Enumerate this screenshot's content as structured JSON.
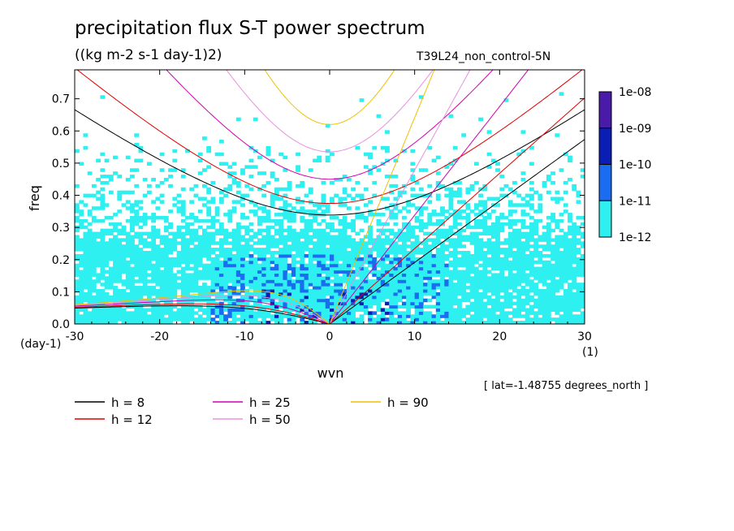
{
  "title": "precipitation flux S-T power spectrum",
  "units": "((kg m-2 s-1 day-1)2)",
  "experiment": "T39L24_non_control-5N",
  "latitude_note": "[ lat=-1.48755 degrees_north ]",
  "chart_data": {
    "type": "heatmap",
    "title": "precipitation flux S-T power spectrum",
    "xlabel": "wvn",
    "ylabel": "freq",
    "x_unit": "(1)",
    "y_unit": "(day-1)",
    "xlim": [
      -30,
      30
    ],
    "ylim": [
      0,
      0.79
    ],
    "xticks": [
      -30,
      -20,
      -10,
      0,
      10,
      20,
      30
    ],
    "xtick_labels": [
      "-30",
      "-20",
      "-10",
      "0",
      "10",
      "20",
      "30"
    ],
    "yticks": [
      0,
      0.1,
      0.2,
      0.3,
      0.4,
      0.5,
      0.6,
      0.7
    ],
    "ytick_labels": [
      "0.0",
      "0.1",
      "0.2",
      "0.3",
      "0.4",
      "0.5",
      "0.6",
      "0.7"
    ],
    "colorbar": {
      "labels": [
        "1e-08",
        "1e-09",
        "1e-10",
        "1e-11",
        "1e-12"
      ],
      "colors": [
        "#4a1aa8",
        "#0a1eb4",
        "#1a6cf0",
        "#2ef0f0"
      ]
    },
    "dispersion_curves": [
      {
        "name": "h = 8",
        "h": 8,
        "color": "#000000"
      },
      {
        "name": "h = 12",
        "h": 12,
        "color": "#e00000"
      },
      {
        "name": "h = 25",
        "h": 25,
        "color": "#d000b0"
      },
      {
        "name": "h = 50",
        "h": 50,
        "color": "#e890e0"
      },
      {
        "name": "h = 90",
        "h": 90,
        "color": "#f0c000"
      }
    ],
    "annotations": [
      "h = 8",
      "h = 12",
      "h = 25",
      "h = 50",
      "h = 90"
    ]
  }
}
